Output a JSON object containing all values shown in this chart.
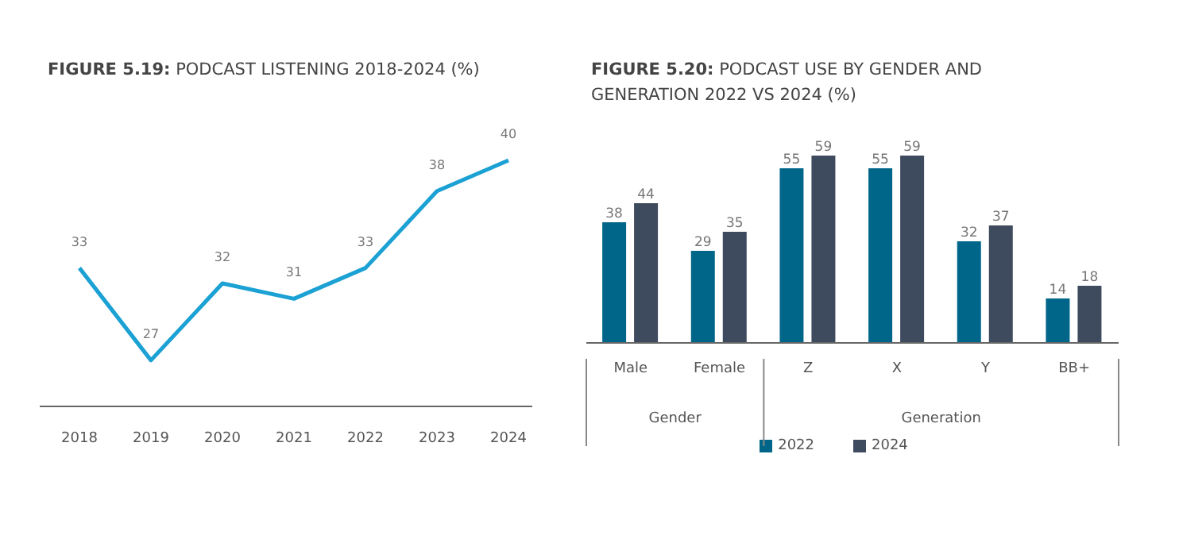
{
  "chart_data": [
    {
      "type": "line",
      "title": "FIGURE 5.19: PODCAST LISTENING 2018-2024 (%)",
      "categories": [
        "2018",
        "2019",
        "2020",
        "2021",
        "2022",
        "2023",
        "2024"
      ],
      "series": [
        {
          "color": "#1ba1d3",
          "values": [
            33,
            27,
            32,
            31,
            33,
            38,
            40
          ]
        }
      ],
      "data_labels": true,
      "marker": "none",
      "line_style": "solid",
      "grid": false,
      "legend": false
    },
    {
      "type": "bar",
      "title": "FIGURE 5.20: PODCAST USE BY GENDER AND GENERATION 2022 VS 2024 (%)",
      "categories": [
        "Male",
        "Female",
        "Z",
        "X",
        "Y",
        "BB+"
      ],
      "series": [
        {
          "name": "2022",
          "color": "#006689",
          "values": [
            38,
            29,
            55,
            55,
            32,
            14
          ]
        },
        {
          "name": "2024",
          "color": "#3e4a5e",
          "values": [
            44,
            35,
            59,
            59,
            37,
            18
          ]
        }
      ],
      "data_labels": true,
      "grid": false,
      "legend": "bottom",
      "annotations": [
        "Gender",
        "Generation"
      ]
    }
  ]
}
